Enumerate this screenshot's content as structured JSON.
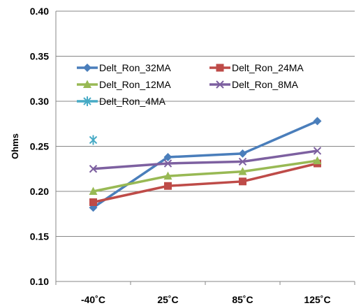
{
  "chart_data": {
    "type": "line",
    "title": "",
    "xlabel": "",
    "ylabel": "Ohms",
    "categories": [
      "-40˚C",
      "25˚C",
      "85˚C",
      "125˚C"
    ],
    "ylim": [
      0.1,
      0.4
    ],
    "yticks": [
      "0.10",
      "0.15",
      "0.20",
      "0.25",
      "0.30",
      "0.35",
      "0.40"
    ],
    "ytick_values": [
      0.1,
      0.15,
      0.2,
      0.25,
      0.3,
      0.35,
      0.4
    ],
    "grid": "horizontal",
    "legend_position": "upper-inside",
    "series": [
      {
        "name": "Delt_Ron_32MA",
        "color": "#4a7ebb",
        "marker": "diamond",
        "values": [
          0.182,
          0.238,
          0.242,
          0.278
        ]
      },
      {
        "name": "Delt_Ron_24MA",
        "color": "#be4b48",
        "marker": "square",
        "values": [
          0.188,
          0.206,
          0.211,
          0.231
        ]
      },
      {
        "name": "Delt_Ron_12MA",
        "color": "#98b954",
        "marker": "triangle",
        "values": [
          0.2,
          0.217,
          0.222,
          0.234
        ]
      },
      {
        "name": "Delt_Ron_8MA",
        "color": "#7d60a0",
        "marker": "x",
        "values": [
          0.225,
          0.231,
          0.233,
          0.245
        ]
      },
      {
        "name": "Delt_Ron_4MA",
        "color": "#46aac5",
        "marker": "star",
        "values": [
          0.257,
          null,
          null,
          null
        ]
      }
    ]
  }
}
